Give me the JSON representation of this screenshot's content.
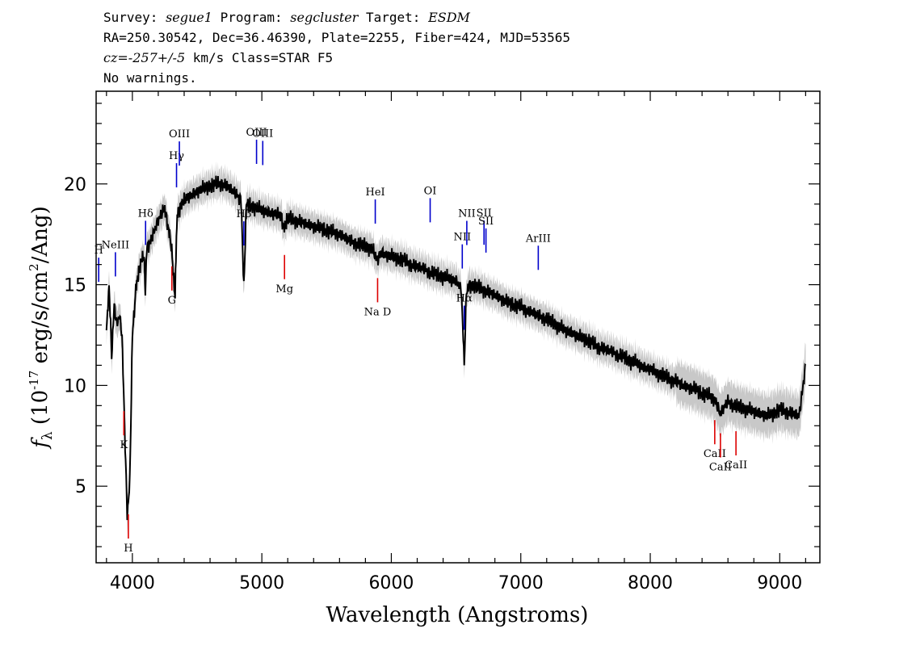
{
  "header": {
    "survey_label": "Survey:",
    "survey": "segue1",
    "program_label": "Program:",
    "program": "segcluster",
    "target_label": "Target:",
    "target": "ESDM",
    "line2": "RA=250.30542, Dec=36.46390, Plate=2255, Fiber=424, MJD=53565",
    "cz_label": "cz=",
    "cz": "-257+/-5",
    "cz_rest": " km/s Class=STAR F5",
    "warnings": "No warnings."
  },
  "colors": {
    "flux": "#000000",
    "error_band": "#c8c8c8",
    "emission_lines": "#0000cc",
    "absorption_lines": "#dd0000"
  },
  "chart_data": {
    "type": "line",
    "xlabel": "Wavelength (Angstroms)",
    "ylabel": "f_λ (10^-17 erg/s/cm^2/Ang)",
    "xlim": [
      3720,
      9310
    ],
    "ylim": [
      1.2,
      24.6
    ],
    "x_ticks": [
      4000,
      5000,
      6000,
      7000,
      8000,
      9000
    ],
    "y_ticks": [
      5,
      10,
      15,
      20
    ],
    "grid": false,
    "series": [
      {
        "x": [
          3800,
          3820,
          3840,
          3860,
          3880,
          3900,
          3920,
          3940,
          3960,
          3980,
          4000,
          4030,
          4060,
          4090,
          4100,
          4110,
          4130,
          4160,
          4200,
          4250,
          4300,
          4330,
          4340,
          4350,
          4380,
          4420,
          4470,
          4520,
          4560,
          4600,
          4650,
          4700,
          4750,
          4800,
          4840,
          4861,
          4880,
          4920,
          4960,
          5000,
          5050,
          5100,
          5150,
          5170,
          5200,
          5250,
          5300,
          5350,
          5400,
          5450,
          5500,
          5550,
          5600,
          5650,
          5700,
          5750,
          5800,
          5850,
          5890,
          5920,
          5950,
          6000,
          6050,
          6100,
          6150,
          6200,
          6250,
          6300,
          6350,
          6400,
          6450,
          6500,
          6540,
          6563,
          6580,
          6600,
          6650,
          6700,
          6750,
          6800,
          6850,
          6900,
          6950,
          7000,
          7050,
          7100,
          7150,
          7200,
          7250,
          7300,
          7350,
          7400,
          7450,
          7500,
          7550,
          7600,
          7650,
          7700,
          7750,
          7800,
          7850,
          7900,
          7950,
          8000,
          8050,
          8100,
          8150,
          8200,
          8250,
          8300,
          8350,
          8400,
          8450,
          8500,
          8540,
          8600,
          8650,
          8700,
          8750,
          8800,
          8850,
          8900,
          8950,
          9000,
          9050,
          9100,
          9150,
          9180,
          9200
        ],
        "y": [
          12.6,
          15.0,
          11.5,
          14.0,
          13.0,
          13.5,
          12.5,
          8.0,
          3.6,
          5.2,
          12.5,
          15.0,
          16.0,
          16.5,
          14.5,
          16.8,
          17.0,
          17.5,
          18.2,
          18.8,
          17.0,
          14.3,
          17.5,
          18.6,
          19.0,
          19.3,
          19.5,
          19.7,
          19.8,
          19.9,
          20.0,
          20.0,
          19.8,
          19.5,
          19.2,
          14.8,
          19.0,
          18.9,
          18.8,
          18.7,
          18.6,
          18.5,
          18.4,
          17.8,
          18.3,
          18.2,
          18.1,
          18.0,
          17.9,
          17.8,
          17.7,
          17.6,
          17.5,
          17.3,
          17.1,
          17.0,
          16.9,
          16.8,
          16.2,
          16.6,
          16.5,
          16.4,
          16.3,
          16.2,
          16.0,
          15.9,
          15.8,
          15.6,
          15.5,
          15.4,
          15.3,
          15.2,
          14.8,
          11.1,
          14.6,
          15.0,
          14.9,
          14.8,
          14.6,
          14.5,
          14.3,
          14.1,
          14.0,
          13.9,
          13.7,
          13.6,
          13.4,
          13.3,
          13.1,
          12.9,
          12.7,
          12.6,
          12.4,
          12.3,
          12.1,
          11.9,
          11.8,
          11.7,
          11.5,
          11.4,
          11.2,
          11.1,
          10.9,
          10.8,
          10.6,
          10.5,
          10.3,
          10.2,
          10.0,
          9.9,
          9.8,
          9.6,
          9.5,
          9.3,
          8.6,
          9.2,
          9.0,
          8.9,
          8.8,
          8.7,
          8.6,
          8.5,
          8.6,
          8.8,
          8.7,
          8.6,
          8.5,
          10.0,
          11.0
        ]
      }
    ],
    "annotations": {
      "emission": [
        {
          "label": "H",
          "x": 3740
        },
        {
          "label": "NeIII",
          "x": 3869
        },
        {
          "label": "Hδ",
          "x": 4102
        },
        {
          "label": "Hγ",
          "x": 4341
        },
        {
          "label": "OIII",
          "x": 4363
        },
        {
          "label": "Hβ",
          "x": 4861
        },
        {
          "label": "OIII",
          "x": 4959
        },
        {
          "label": "OIII",
          "x": 5007
        },
        {
          "label": "HeI",
          "x": 5876
        },
        {
          "label": "OI",
          "x": 6300
        },
        {
          "label": "NII",
          "x": 6548
        },
        {
          "label": "Hα",
          "x": 6563
        },
        {
          "label": "NII",
          "x": 6583
        },
        {
          "label": "SII",
          "x": 6716
        },
        {
          "label": "SII",
          "x": 6731
        },
        {
          "label": "ArIII",
          "x": 7135
        }
      ],
      "absorption": [
        {
          "label": "K",
          "x": 3934
        },
        {
          "label": "H",
          "x": 3969
        },
        {
          "label": "G",
          "x": 4305
        },
        {
          "label": "Mg",
          "x": 5175
        },
        {
          "label": "Na  D",
          "x": 5894
        },
        {
          "label": "CaII",
          "x": 8498
        },
        {
          "label": "CaII",
          "x": 8542
        },
        {
          "label": "CaII",
          "x": 8662
        }
      ]
    }
  }
}
